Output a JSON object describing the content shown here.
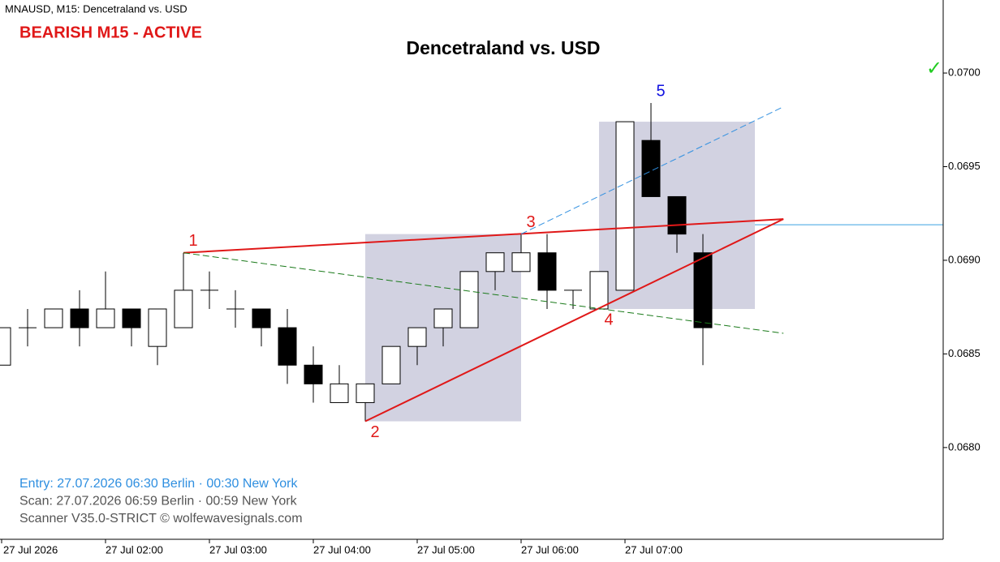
{
  "chart_data": {
    "type": "candlestick",
    "header": "MNAUSD, M15:  Dencetraland vs. USD",
    "status": "BEARISH M15 - ACTIVE",
    "title": "Dencetraland vs. USD",
    "footer": [
      "Entry: 27.07.2026  06:30 Berlin · 00:30 New York",
      "Scan:  27.07.2026  06:59 Berlin · 00:59 New York",
      "Scanner V35.0-STRICT   © wolfewavesignals.com"
    ],
    "footer_colors": [
      "#2f8fe0",
      "#555555",
      "#555555"
    ],
    "categories": [
      "27 Jul 2026",
      null,
      null,
      null,
      "27 Jul 02:00",
      null,
      null,
      null,
      "27 Jul 03:00",
      null,
      null,
      null,
      "27 Jul 04:00",
      null,
      null,
      null,
      "27 Jul 05:00",
      null,
      null,
      null,
      "27 Jul 06:00",
      null,
      null,
      null,
      "27 Jul 07:00",
      null,
      null,
      null
    ],
    "open": [
      0.06844,
      0.06864,
      0.06864,
      0.06874,
      0.06864,
      0.06874,
      0.06854,
      0.06864,
      0.06884,
      0.06874,
      0.06874,
      0.06864,
      0.06844,
      0.06824,
      0.06824,
      0.06834,
      0.06854,
      0.06864,
      0.06864,
      0.06894,
      0.06894,
      0.06904,
      0.06884,
      0.06874,
      0.06884,
      0.06964,
      0.06934,
      0.06904
    ],
    "high": [
      0.06864,
      0.06874,
      0.06874,
      0.06884,
      0.06894,
      0.06874,
      0.06874,
      0.06904,
      0.06894,
      0.06884,
      0.06874,
      0.06874,
      0.06854,
      0.06844,
      0.06834,
      0.06854,
      0.06864,
      0.06874,
      0.06894,
      0.06904,
      0.06914,
      0.06914,
      0.06884,
      0.06894,
      0.06974,
      0.06984,
      0.06934,
      0.06914
    ],
    "low": [
      0.06844,
      0.06854,
      0.06864,
      0.06854,
      0.06864,
      0.06854,
      0.06844,
      0.06864,
      0.06874,
      0.06864,
      0.06854,
      0.06834,
      0.06824,
      0.06824,
      0.06814,
      0.06834,
      0.06844,
      0.06854,
      0.06864,
      0.06884,
      0.06894,
      0.06874,
      0.06874,
      0.06874,
      0.06884,
      0.06934,
      0.06904,
      0.06844
    ],
    "close": [
      0.06864,
      0.06864,
      0.06874,
      0.06864,
      0.06874,
      0.06864,
      0.06874,
      0.06884,
      0.06884,
      0.06874,
      0.06864,
      0.06844,
      0.06834,
      0.06834,
      0.06834,
      0.06854,
      0.06864,
      0.06874,
      0.06894,
      0.06904,
      0.06904,
      0.06884,
      0.06884,
      0.06894,
      0.06974,
      0.06934,
      0.06914,
      0.06864
    ],
    "up_color": "#ffffff",
    "down_color": "#000000",
    "ylim": [
      0.06751,
      0.07039
    ],
    "yticks": [
      {
        "value": 0.068,
        "label": "0.0680"
      },
      {
        "value": 0.0685,
        "label": "0.0685"
      },
      {
        "value": 0.069,
        "label": "0.0690"
      },
      {
        "value": 0.0695,
        "label": "0.0695"
      },
      {
        "value": 0.07,
        "label": "0.0700"
      }
    ],
    "zones": [
      {
        "from_index": 14,
        "to_index": 20,
        "top": 0.06914,
        "bottom": 0.06814,
        "color": "#d2d2e1"
      },
      {
        "from_index": 23,
        "to_index": 29,
        "top": 0.06974,
        "bottom": 0.06874,
        "color": "#d2d2e1"
      }
    ],
    "lines": [
      {
        "from": [
          7,
          0.06904
        ],
        "to": [
          30.1,
          0.06922
        ],
        "color": "#e01818",
        "width": 2,
        "dash": false
      },
      {
        "from": [
          14,
          0.06814
        ],
        "to": [
          30.1,
          0.06922
        ],
        "color": "#e01818",
        "width": 2,
        "dash": false
      },
      {
        "from": [
          20,
          0.06914
        ],
        "to": [
          30.1,
          0.06982
        ],
        "color": "#2f8fe0",
        "width": 1,
        "dash": true
      },
      {
        "from": [
          7,
          0.06904
        ],
        "to": [
          30.1,
          0.06861
        ],
        "color": "#1a7a1a",
        "width": 1,
        "dash": true
      }
    ],
    "target": {
      "value": 0.06919,
      "from_index": 29,
      "color": "#3aa0e0"
    },
    "target_check": {
      "label": "✓",
      "value": 0.07002,
      "color": "#22cc22"
    },
    "wolfe_points": [
      {
        "label": "1",
        "index": 7,
        "value": 0.06904,
        "position": "above",
        "color": "#e01818"
      },
      {
        "label": "2",
        "index": 14,
        "value": 0.06814,
        "position": "below",
        "color": "#e01818"
      },
      {
        "label": "3",
        "index": 20,
        "value": 0.06914,
        "position": "above",
        "color": "#e01818"
      },
      {
        "label": "4",
        "index": 23,
        "value": 0.06874,
        "position": "below",
        "color": "#e01818"
      },
      {
        "label": "5",
        "index": 25,
        "value": 0.06984,
        "position": "above",
        "color": "#1010e0"
      }
    ]
  }
}
